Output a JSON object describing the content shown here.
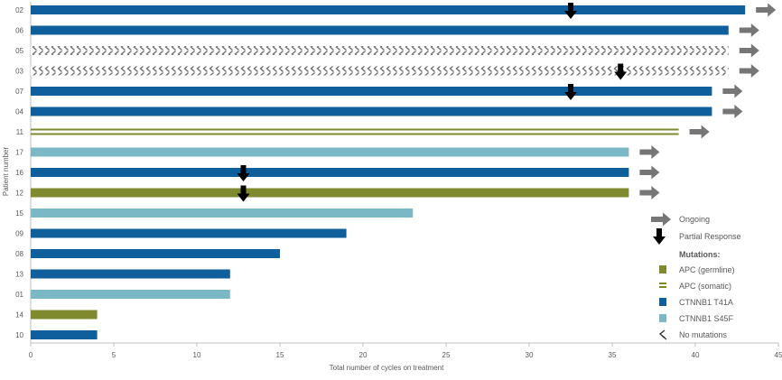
{
  "chart_data": {
    "type": "bar",
    "orientation": "horizontal",
    "title": "",
    "xlabel": "Total number of cycles on treatment",
    "ylabel": "Patient number",
    "xlim": [
      0,
      45
    ],
    "xticks": [
      "0",
      "5",
      "10",
      "15",
      "20",
      "25",
      "30",
      "35",
      "40",
      "45"
    ],
    "grid": false,
    "legend_position": "bottom-right",
    "colors": {
      "apc_germline": "#7f8a2e",
      "apc_somatic": "#7f8a2e",
      "ctnnb1_t41a": "#0e5f9c",
      "ctnnb1_s45f": "#7ab8c6",
      "none": "#7f7f7f",
      "ongoing": "#767676",
      "response": "#000000",
      "axis": "#bfbfbf"
    },
    "patients": [
      {
        "id": "02",
        "cycles": 43.0,
        "mutation": "ctnnb1_t41a",
        "ongoing": true,
        "response_at": 32.5
      },
      {
        "id": "06",
        "cycles": 42.0,
        "mutation": "ctnnb1_t41a",
        "ongoing": true,
        "response_at": null
      },
      {
        "id": "05",
        "cycles": 42.0,
        "mutation": "none",
        "ongoing": true,
        "response_at": null
      },
      {
        "id": "03",
        "cycles": 42.0,
        "mutation": "none",
        "ongoing": true,
        "response_at": 35.5
      },
      {
        "id": "07",
        "cycles": 41.0,
        "mutation": "ctnnb1_t41a",
        "ongoing": true,
        "response_at": 32.5
      },
      {
        "id": "04",
        "cycles": 41.0,
        "mutation": "ctnnb1_t41a",
        "ongoing": true,
        "response_at": null
      },
      {
        "id": "11",
        "cycles": 39.0,
        "mutation": "apc_somatic",
        "ongoing": true,
        "response_at": null
      },
      {
        "id": "17",
        "cycles": 36.0,
        "mutation": "ctnnb1_s45f",
        "ongoing": true,
        "response_at": null
      },
      {
        "id": "16",
        "cycles": 36.0,
        "mutation": "ctnnb1_t41a",
        "ongoing": true,
        "response_at": 12.8
      },
      {
        "id": "12",
        "cycles": 36.0,
        "mutation": "apc_germline",
        "ongoing": true,
        "response_at": 12.8
      },
      {
        "id": "15",
        "cycles": 23.0,
        "mutation": "ctnnb1_s45f",
        "ongoing": false,
        "response_at": null
      },
      {
        "id": "09",
        "cycles": 19.0,
        "mutation": "ctnnb1_t41a",
        "ongoing": false,
        "response_at": null
      },
      {
        "id": "08",
        "cycles": 15.0,
        "mutation": "ctnnb1_t41a",
        "ongoing": false,
        "response_at": null
      },
      {
        "id": "13",
        "cycles": 12.0,
        "mutation": "ctnnb1_t41a",
        "ongoing": false,
        "response_at": null
      },
      {
        "id": "01",
        "cycles": 12.0,
        "mutation": "ctnnb1_s45f",
        "ongoing": false,
        "response_at": null
      },
      {
        "id": "14",
        "cycles": 4.0,
        "mutation": "apc_germline",
        "ongoing": false,
        "response_at": null
      },
      {
        "id": "10",
        "cycles": 4.0,
        "mutation": "ctnnb1_t41a",
        "ongoing": false,
        "response_at": null
      }
    ],
    "legend": {
      "ongoing": "Ongoing",
      "response": "Partial Response",
      "mutations_title": "Mutations:",
      "items": [
        {
          "key": "apc_germline",
          "label": "APC (germline)"
        },
        {
          "key": "apc_somatic",
          "label": "APC (somatic)"
        },
        {
          "key": "ctnnb1_t41a",
          "label": "CTNNB1 T41A"
        },
        {
          "key": "ctnnb1_s45f",
          "label": "CTNNB1 S45F"
        },
        {
          "key": "none",
          "label": "No mutations"
        }
      ]
    }
  }
}
